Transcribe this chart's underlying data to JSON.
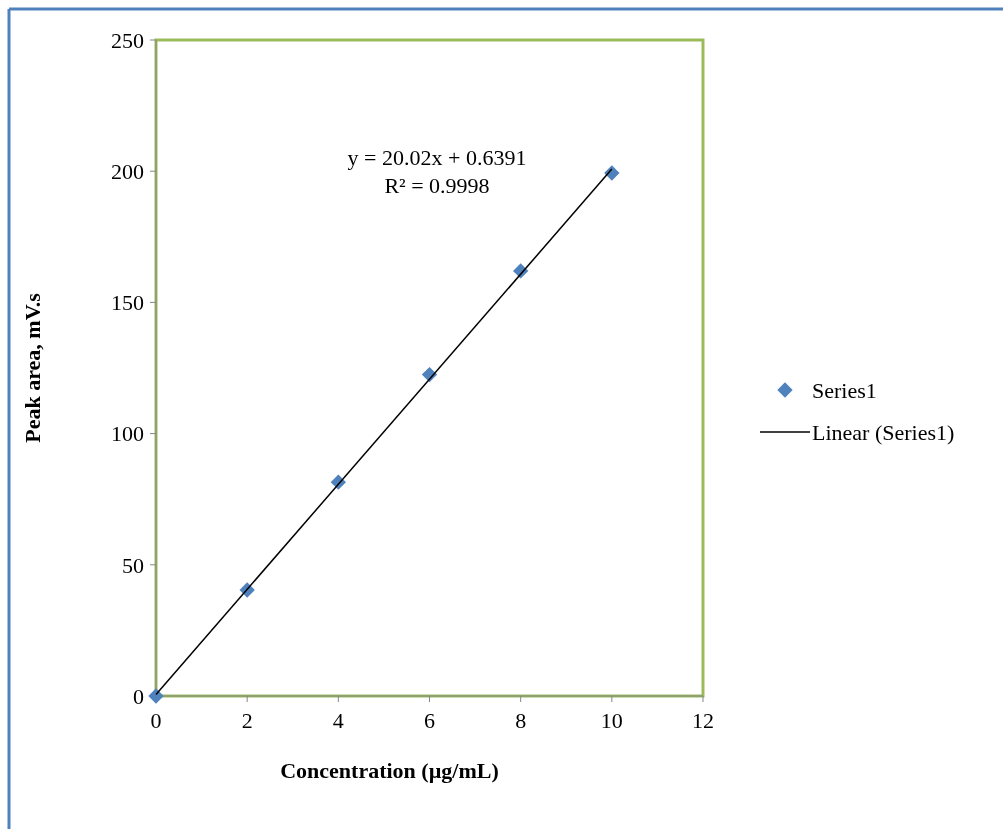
{
  "chart_data": {
    "type": "scatter",
    "xlabel": "Concentration (µg/mL)",
    "ylabel": "Peak area, mV.s",
    "annotations": [
      "y = 20.02x + 0.6391",
      "R² = 0.9998"
    ],
    "series": [
      {
        "name": "Series1",
        "marker": "diamond",
        "color": "#4f81bd",
        "x": [
          0,
          2,
          4,
          6,
          8,
          10
        ],
        "values": [
          0,
          40.4,
          81.5,
          122.5,
          162,
          199.3
        ]
      },
      {
        "name": "Linear (Series1)",
        "type": "line",
        "marker": "none",
        "color": "#000000",
        "x": [
          0,
          10
        ],
        "values": [
          0.6,
          200.8
        ]
      }
    ],
    "xlim": [
      0,
      12
    ],
    "xticks": [
      0,
      2,
      4,
      6,
      8,
      10,
      12
    ],
    "ylim": [
      0,
      250
    ],
    "yticks": [
      0,
      50,
      100,
      150,
      200,
      250
    ],
    "grid": false,
    "legend": "right",
    "line_style": "solid"
  }
}
